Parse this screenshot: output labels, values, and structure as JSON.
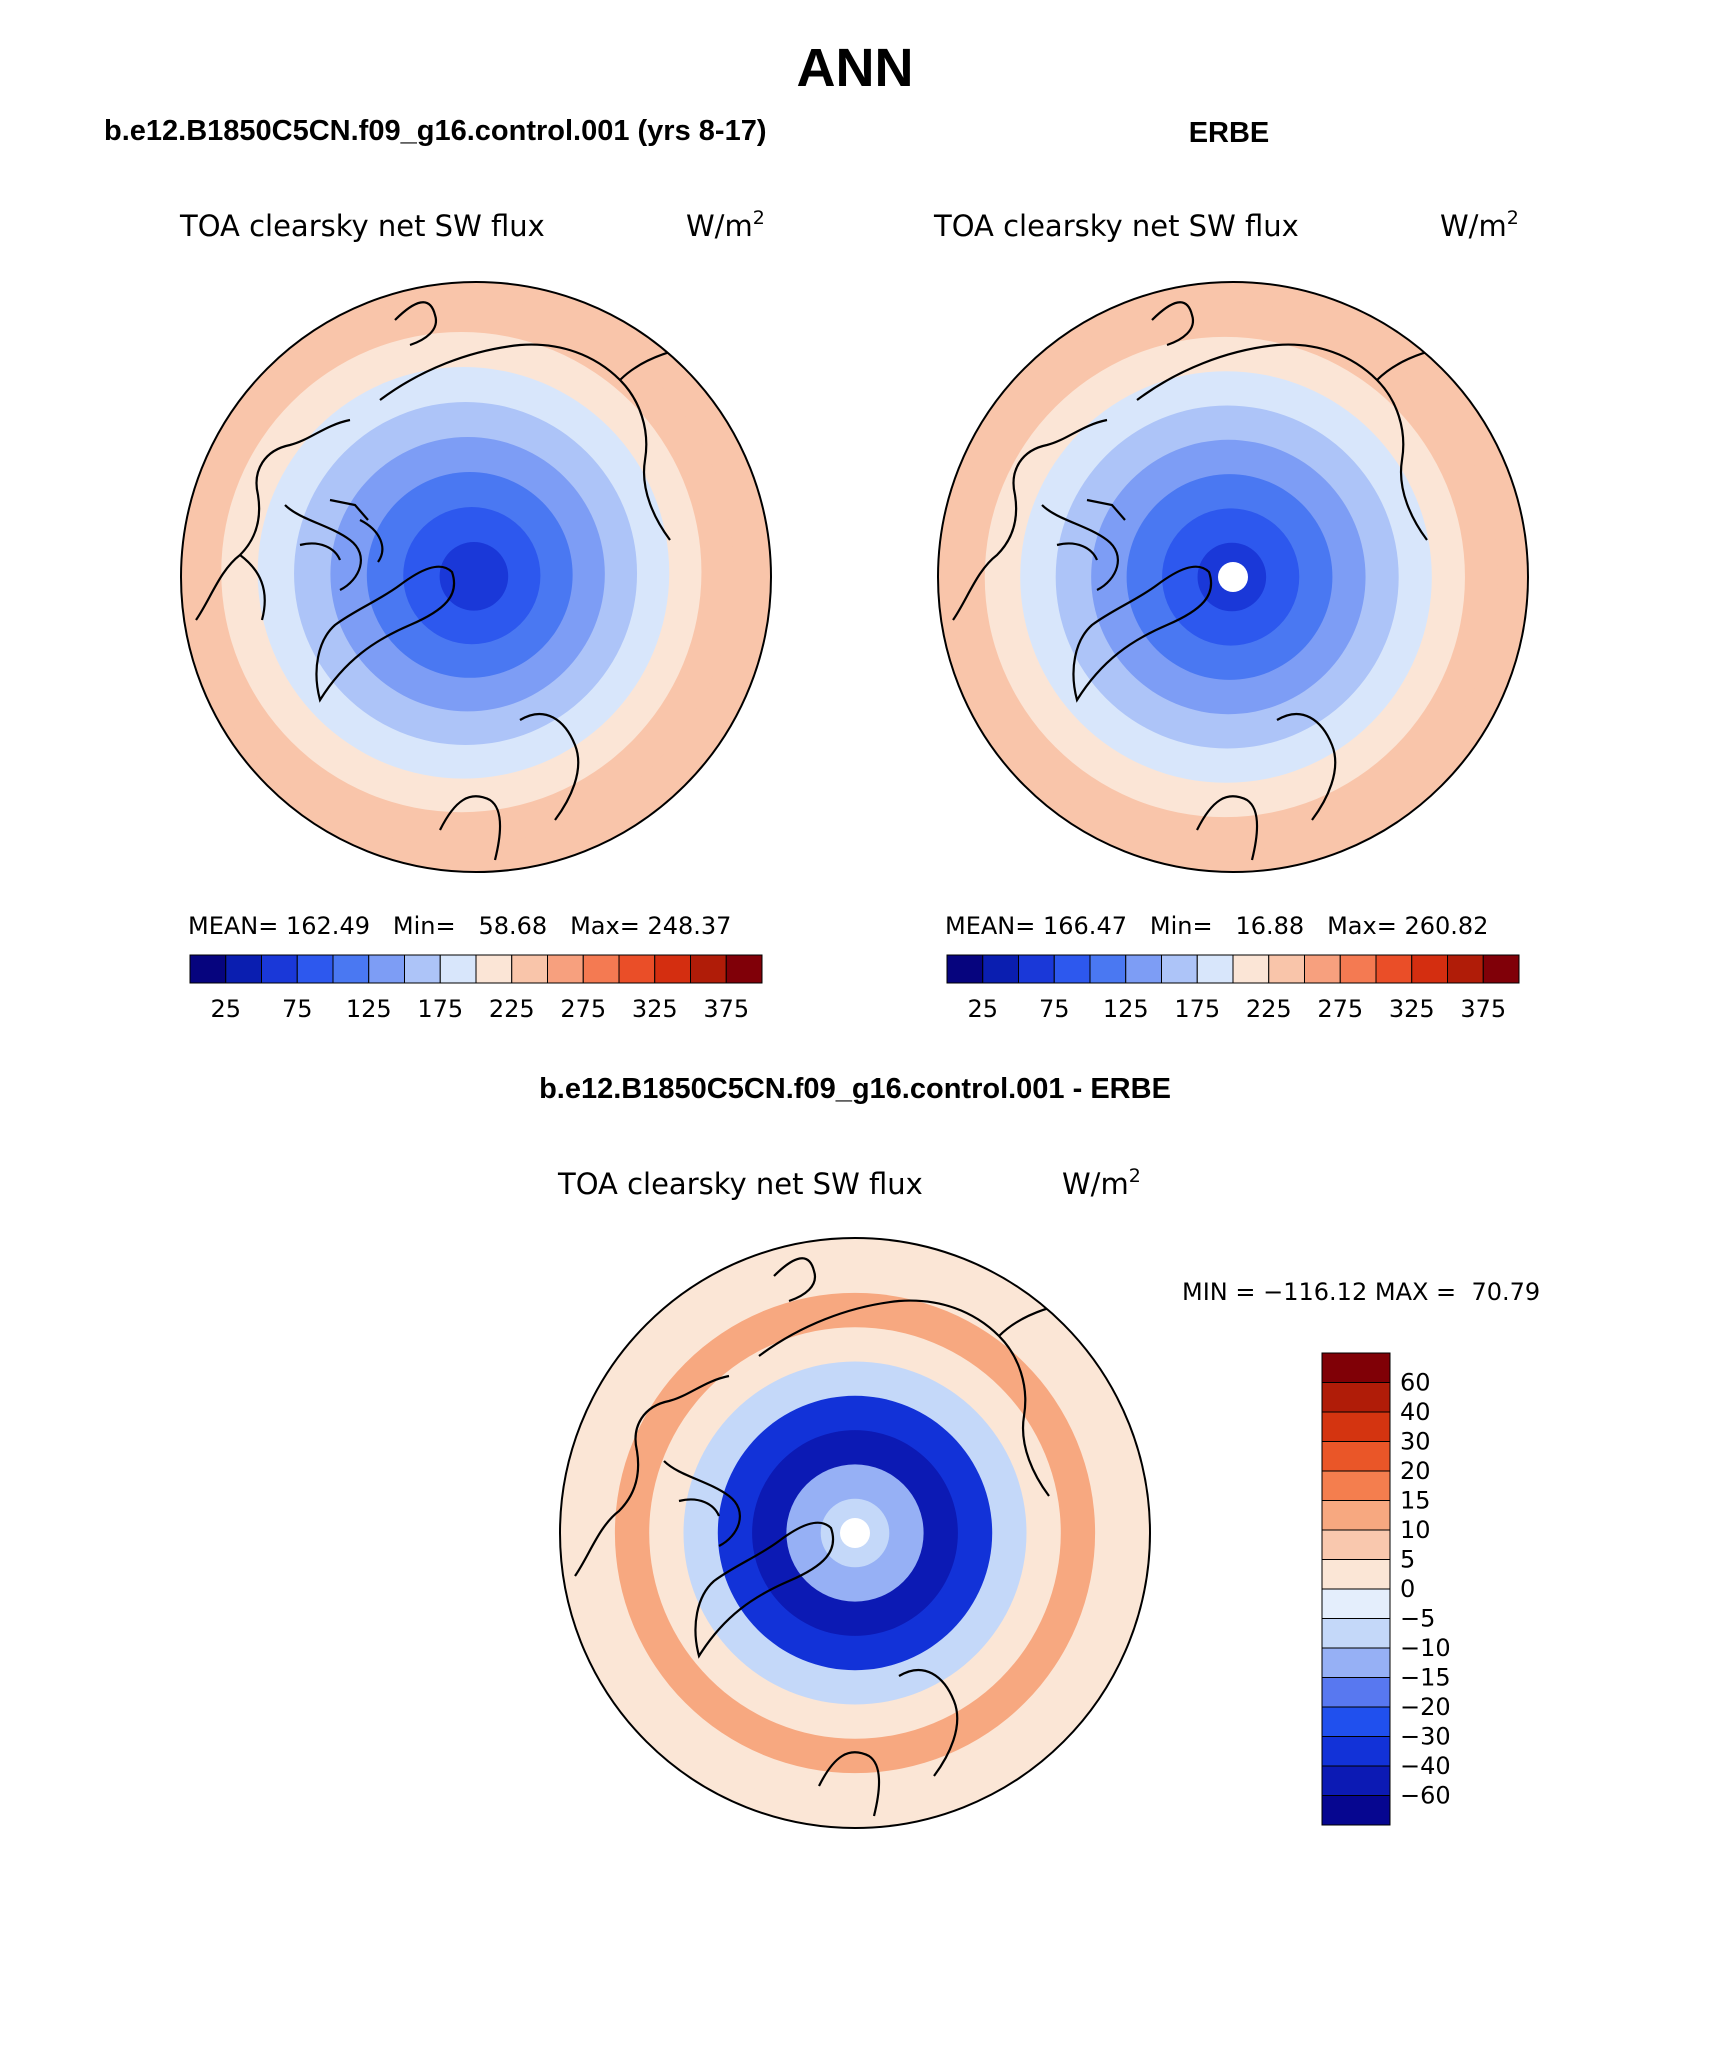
{
  "figure": {
    "title": "ANN",
    "palette": {
      "abs": [
        "#06047e",
        "#0a1eb0",
        "#1a38d8",
        "#2d58ee",
        "#4a78f2",
        "#7d9df5",
        "#adc4f8",
        "#d8e6fb",
        "#fbe5d6",
        "#f9c5aa",
        "#f7a07e",
        "#f47a52",
        "#ea4e28",
        "#d42e10",
        "#b01c08",
        "#800008"
      ],
      "diff": [
        "#060690",
        "#0c1ab4",
        "#1232d8",
        "#2050ee",
        "#5878f0",
        "#96b0f5",
        "#c4d8f9",
        "#e4eefc",
        "#fbe6d6",
        "#f9c8ae",
        "#f7a880",
        "#f47e4e",
        "#ea5628",
        "#d43410",
        "#b01c08",
        "#800006"
      ]
    }
  },
  "chart_data": [
    {
      "type": "heatmap",
      "title": "b.e12.B1850C5CN.f09_g16.control.001 (yrs 8-17)",
      "variable": "TOA clearsky net SW flux",
      "units": "W/m",
      "units_sup": "2",
      "stats": {
        "mean_label": "MEAN=",
        "mean": "162.49",
        "min_label": "Min=",
        "min": "58.68",
        "max_label": "Max=",
        "max": "248.37"
      },
      "contour_levels": [
        25,
        50,
        75,
        100,
        125,
        150,
        175,
        200,
        225,
        250,
        275,
        300,
        325,
        350,
        375
      ],
      "colorbar_labels": [
        "25",
        "75",
        "125",
        "175",
        "225",
        "275",
        "325",
        "375"
      ],
      "projection": "polar stereographic, north pole",
      "legend_position": "bottom",
      "field_rings": [
        {
          "level": 58.68,
          "class": 2
        },
        {
          "level": 80,
          "class": 3
        },
        {
          "level": 110,
          "class": 4
        },
        {
          "level": 140,
          "class": 5
        },
        {
          "level": 170,
          "class": 6
        },
        {
          "level": 200,
          "class": 7
        },
        {
          "level": 230,
          "class": 8
        },
        {
          "level": 248.37,
          "class": 9
        }
      ]
    },
    {
      "type": "heatmap",
      "title": "ERBE",
      "variable": "TOA clearsky net SW flux",
      "units": "W/m",
      "units_sup": "2",
      "stats": {
        "mean_label": "MEAN=",
        "mean": "166.47",
        "min_label": "Min=",
        "min": "16.88",
        "max_label": "Max=",
        "max": "260.82"
      },
      "contour_levels": [
        25,
        50,
        75,
        100,
        125,
        150,
        175,
        200,
        225,
        250,
        275,
        300,
        325,
        350,
        375
      ],
      "colorbar_labels": [
        "25",
        "75",
        "125",
        "175",
        "225",
        "275",
        "325",
        "375"
      ],
      "projection": "polar stereographic, north pole",
      "legend_position": "bottom",
      "field_rings": [
        {
          "level": 70,
          "class": 2
        },
        {
          "level": 95,
          "class": 3
        },
        {
          "level": 120,
          "class": 4
        },
        {
          "level": 150,
          "class": 5
        },
        {
          "level": 180,
          "class": 6
        },
        {
          "level": 210,
          "class": 7
        },
        {
          "level": 235,
          "class": 8
        },
        {
          "level": 260.82,
          "class": 9
        }
      ]
    },
    {
      "type": "heatmap",
      "title": "b.e12.B1850C5CN.f09_g16.control.001 - ERBE",
      "variable": "TOA clearsky net SW flux",
      "units": "W/m",
      "units_sup": "2",
      "stats": {
        "min_label": "MIN =",
        "min": "−116.12",
        "max_label": "MAX =",
        "max": "70.79"
      },
      "contour_levels": [
        -60,
        -40,
        -30,
        -20,
        -15,
        -10,
        -5,
        0,
        5,
        10,
        15,
        20,
        30,
        40,
        60
      ],
      "colorbar_labels": [
        "60",
        "40",
        "30",
        "20",
        "15",
        "10",
        "5",
        "0",
        "−5",
        "−10",
        "−15",
        "−20",
        "−30",
        "−40",
        "−60"
      ],
      "projection": "polar stereographic, north pole",
      "legend_position": "right",
      "field_rings": [
        {
          "level": -7,
          "class": 6
        },
        {
          "level": -12,
          "class": 5
        },
        {
          "level": -35,
          "class": 1
        },
        {
          "level": -25,
          "class": 2
        },
        {
          "level": -8,
          "class": 6
        },
        {
          "level": 3,
          "class": 8
        },
        {
          "level": 12,
          "class": 10
        },
        {
          "level": 4,
          "class": 8
        }
      ]
    }
  ]
}
